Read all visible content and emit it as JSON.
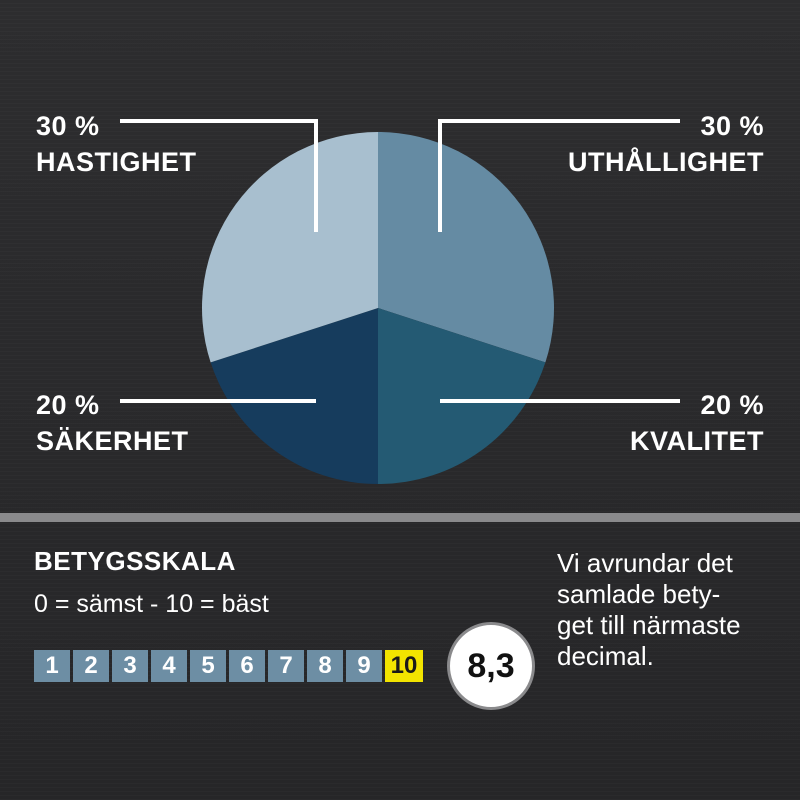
{
  "chart_data": {
    "type": "pie",
    "slices": [
      {
        "name": "UTHÅLLIGHET",
        "value": 30,
        "label": "30 %",
        "color": "#658ba3"
      },
      {
        "name": "KVALITET",
        "value": 20,
        "label": "20 %",
        "color": "#245a73"
      },
      {
        "name": "SÄKERHET",
        "value": 20,
        "label": "20 %",
        "color": "#163c5d"
      },
      {
        "name": "HASTIGHET",
        "value": 30,
        "label": "30 %",
        "color": "#a8bfcf"
      }
    ]
  },
  "scale": {
    "title": "BETYGSSKALA",
    "subtitle": "0 = sämst - 10 = bäst",
    "values": [
      "1",
      "2",
      "3",
      "4",
      "5",
      "6",
      "7",
      "8",
      "9",
      "10"
    ],
    "active_index": 9,
    "active_color": "#f2e400",
    "cell_color": "#6d8ea4"
  },
  "score": {
    "value": "8,3"
  },
  "note": {
    "lines": [
      "Vi  avrundar det",
      "samlade bety-",
      "get till närmaste",
      "decimal."
    ]
  }
}
